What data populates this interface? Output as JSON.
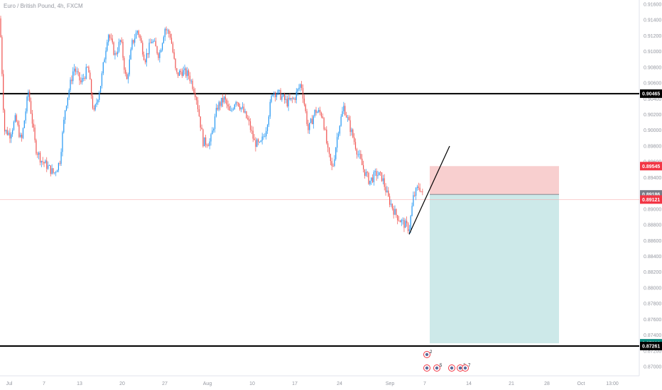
{
  "header": {
    "title": "Euro / British Pound, 4h, FXCM"
  },
  "colors": {
    "up": "#2196f3",
    "down": "#ef5350",
    "hline": "#000000",
    "stop_zone": "#f8cfcf",
    "target_zone": "#cde9e9",
    "tag_black": "#000000",
    "tag_red": "#f23645",
    "tag_gray": "#787b86",
    "tag_teal": "#0a8a7f"
  },
  "chart_data": {
    "type": "candlestick",
    "title": "Euro / British Pound, 4h, FXCM",
    "ylim": [
      0.869,
      0.917
    ],
    "y_ticks": [
      "0.91600",
      "0.91400",
      "0.91200",
      "0.91000",
      "0.90800",
      "0.90600",
      "0.90400",
      "0.90200",
      "0.90000",
      "0.89800",
      "0.89600",
      "0.89400",
      "0.89200",
      "0.89000",
      "0.88800",
      "0.88600",
      "0.88400",
      "0.88200",
      "0.88000",
      "0.87800",
      "0.87600",
      "0.87400",
      "0.87200",
      "0.87000"
    ],
    "x_ticks": [
      "Jul",
      "7",
      "13",
      "20",
      "27",
      "Aug",
      "10",
      "17",
      "24",
      "Sep",
      "7",
      "14",
      "21",
      "28",
      "Oct",
      "13:00"
    ],
    "price_anchors": [
      [
        0,
        0.9142
      ],
      [
        6,
        0.9
      ],
      [
        14,
        0.8995
      ],
      [
        22,
        0.9015
      ],
      [
        30,
        0.8985
      ],
      [
        40,
        0.905
      ],
      [
        50,
        0.8978
      ],
      [
        58,
        0.8962
      ],
      [
        66,
        0.8955
      ],
      [
        76,
        0.8945
      ],
      [
        84,
        0.896
      ],
      [
        92,
        0.903
      ],
      [
        104,
        0.908
      ],
      [
        114,
        0.906
      ],
      [
        124,
        0.908
      ],
      [
        132,
        0.902
      ],
      [
        142,
        0.906
      ],
      [
        152,
        0.9125
      ],
      [
        162,
        0.9095
      ],
      [
        170,
        0.9115
      ],
      [
        178,
        0.906
      ],
      [
        186,
        0.911
      ],
      [
        194,
        0.9128
      ],
      [
        204,
        0.909
      ],
      [
        214,
        0.9115
      ],
      [
        224,
        0.9095
      ],
      [
        232,
        0.913
      ],
      [
        240,
        0.912
      ],
      [
        248,
        0.907
      ],
      [
        256,
        0.9075
      ],
      [
        266,
        0.907
      ],
      [
        276,
        0.9045
      ],
      [
        286,
        0.8985
      ],
      [
        296,
        0.8985
      ],
      [
        306,
        0.903
      ],
      [
        316,
        0.904
      ],
      [
        324,
        0.902
      ],
      [
        332,
        0.904
      ],
      [
        342,
        0.9025
      ],
      [
        350,
        0.901
      ],
      [
        358,
        0.8985
      ],
      [
        366,
        0.898
      ],
      [
        374,
        0.9
      ],
      [
        384,
        0.905
      ],
      [
        394,
        0.9045
      ],
      [
        404,
        0.9035
      ],
      [
        414,
        0.904
      ],
      [
        424,
        0.906
      ],
      [
        434,
        0.9
      ],
      [
        444,
        0.9025
      ],
      [
        454,
        0.902
      ],
      [
        462,
        0.897
      ],
      [
        468,
        0.895
      ],
      [
        476,
        0.9
      ],
      [
        484,
        0.903
      ],
      [
        494,
        0.9
      ],
      [
        504,
        0.897
      ],
      [
        512,
        0.895
      ],
      [
        520,
        0.8935
      ],
      [
        530,
        0.8945
      ],
      [
        538,
        0.894
      ],
      [
        546,
        0.8915
      ],
      [
        556,
        0.8895
      ],
      [
        564,
        0.8885
      ],
      [
        570,
        0.888
      ],
      [
        576,
        0.8875
      ],
      [
        582,
        0.8915
      ],
      [
        590,
        0.893
      ],
      [
        596,
        0.8915
      ]
    ],
    "horizontal_lines": [
      {
        "price": 0.90465,
        "label": "0.90465",
        "style": "line"
      },
      {
        "price": 0.87261,
        "label": "0.87261",
        "style": "line"
      },
      {
        "price": 0.89121,
        "label": "0.89121",
        "style": "thin"
      }
    ],
    "position": {
      "type": "short",
      "entry": 0.89186,
      "stop": 0.89545,
      "target": 0.87296,
      "labels": {
        "stop": "0.89545",
        "entry": "0.89186",
        "target": "0.87296",
        "current": "0.89121"
      }
    },
    "trendline": {
      "from": [
        0.8868
      ],
      "to": [
        0.898
      ]
    },
    "event_markers": {
      "counts": [
        "2",
        "5",
        "2",
        "7"
      ]
    }
  }
}
